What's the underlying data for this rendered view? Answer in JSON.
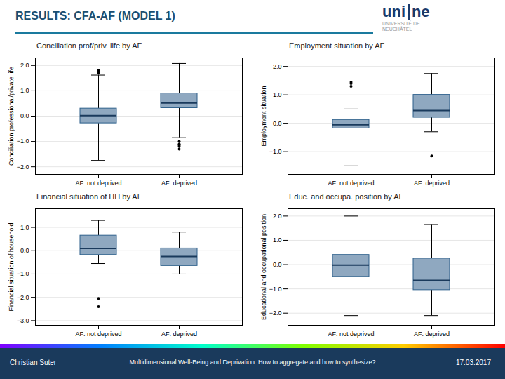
{
  "title": "RESULTS: CFA-AF (MODEL 1)",
  "annotations": [
    "uni",
    "ne",
    "UNIVERSITÉ DE",
    "NEUCHÂTEL",
    "Christian Suter",
    "Multidimensional Well-Being and Deprivation: How to aggregate and how to synthesize?",
    "17.03.2017"
  ],
  "chart_data": [
    {
      "type": "box",
      "title": "Conciliation prof/priv. life by AF",
      "ylabel": "Conciliation professional/private life",
      "categories": [
        "AF: not deprived",
        "AF: deprived"
      ],
      "boxes": [
        {
          "q1": -0.28,
          "median": 0.02,
          "q3": 0.3,
          "whisker_low": -1.75,
          "whisker_high": 1.62,
          "outliers": [
            1.72,
            1.78,
            1.8
          ]
        },
        {
          "q1": 0.32,
          "median": 0.52,
          "q3": 0.9,
          "whisker_low": -0.85,
          "whisker_high": 2.08,
          "outliers": [
            -1.0,
            -1.1,
            -1.15,
            -1.2,
            -1.3
          ]
        }
      ],
      "ylim": [
        -2.3,
        2.3
      ],
      "yticks": [
        -2,
        -1,
        0,
        1,
        2
      ],
      "grid": true
    },
    {
      "type": "box",
      "title": "Employment situation by AF",
      "ylabel": "Employment situation",
      "categories": [
        "AF: not deprived",
        "AF: deprived"
      ],
      "boxes": [
        {
          "q1": -0.18,
          "median": -0.05,
          "q3": 0.12,
          "whisker_low": -1.5,
          "whisker_high": 0.5,
          "outliers": [
            1.3,
            1.4,
            1.45
          ]
        },
        {
          "q1": 0.2,
          "median": 0.45,
          "q3": 1.0,
          "whisker_low": -0.3,
          "whisker_high": 1.75,
          "outliers": [
            -1.15
          ]
        }
      ],
      "ylim": [
        -1.8,
        2.3
      ],
      "yticks": [
        -1,
        0,
        1,
        2
      ],
      "grid": true
    },
    {
      "type": "box",
      "title": "Financial situation of HH by AF",
      "ylabel": "Financial situation of household",
      "categories": [
        "AF: not deprived",
        "AF: deprived"
      ],
      "boxes": [
        {
          "q1": -0.18,
          "median": 0.1,
          "q3": 0.65,
          "whisker_low": -0.55,
          "whisker_high": 1.3,
          "outliers": [
            -2.05,
            -2.4
          ]
        },
        {
          "q1": -0.65,
          "median": -0.25,
          "q3": 0.1,
          "whisker_low": -1.0,
          "whisker_high": 0.8,
          "outliers": []
        }
      ],
      "ylim": [
        -3.2,
        1.8
      ],
      "yticks": [
        -3,
        -2,
        -1,
        0,
        1
      ],
      "grid": true
    },
    {
      "type": "box",
      "title": "Educ. and occupa. position by AF",
      "ylabel": "Educational and occupational position",
      "categories": [
        "AF: not deprived",
        "AF: deprived"
      ],
      "boxes": [
        {
          "q1": -0.5,
          "median": -0.02,
          "q3": 0.4,
          "whisker_low": -2.1,
          "whisker_high": 2.0,
          "outliers": []
        },
        {
          "q1": -1.05,
          "median": -0.65,
          "q3": 0.25,
          "whisker_low": -2.1,
          "whisker_high": 1.65,
          "outliers": []
        }
      ],
      "ylim": [
        -2.5,
        2.3
      ],
      "yticks": [
        -2,
        -1,
        0,
        1,
        2
      ],
      "grid": true
    }
  ]
}
